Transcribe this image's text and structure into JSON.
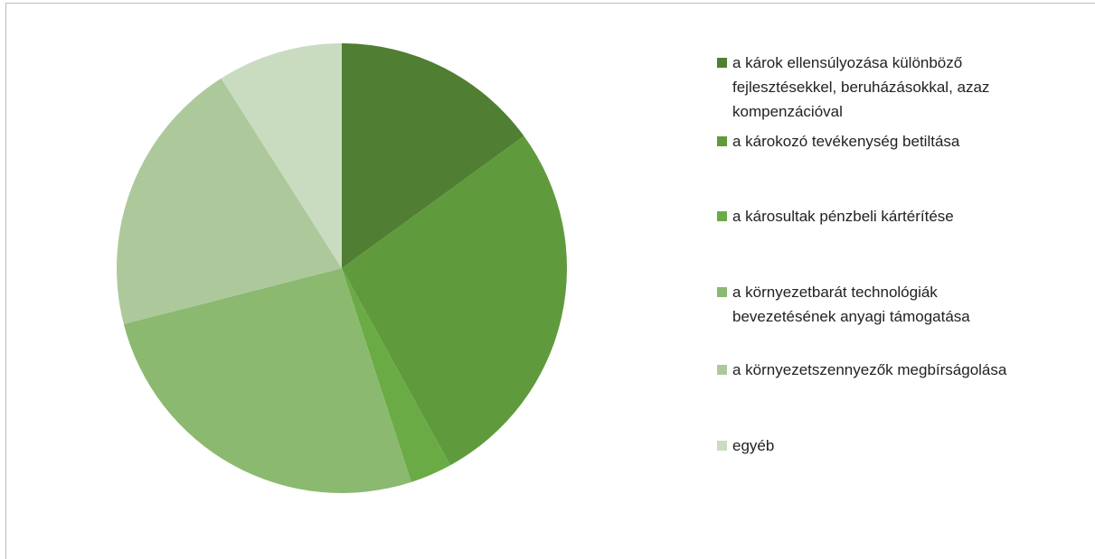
{
  "chart_data": {
    "type": "pie",
    "categories": [
      "a károk ellensúlyozása különböző fejlesztésekkel, beruházásokkal, azaz  kompenzációval",
      "a károkozó tevékenység betiltása",
      "a károsultak pénzbeli kártérítése",
      "a környezetbarát technológiák bevezetésének anyagi támogatása",
      "a környezetszennyezők megbírságolása",
      "egyéb"
    ],
    "values": [
      15,
      27,
      3,
      26,
      20,
      9
    ],
    "colors": [
      "#507e32",
      "#5f9a3c",
      "#6aab45",
      "#8ab96f",
      "#adc99b",
      "#c9dcc0"
    ]
  }
}
